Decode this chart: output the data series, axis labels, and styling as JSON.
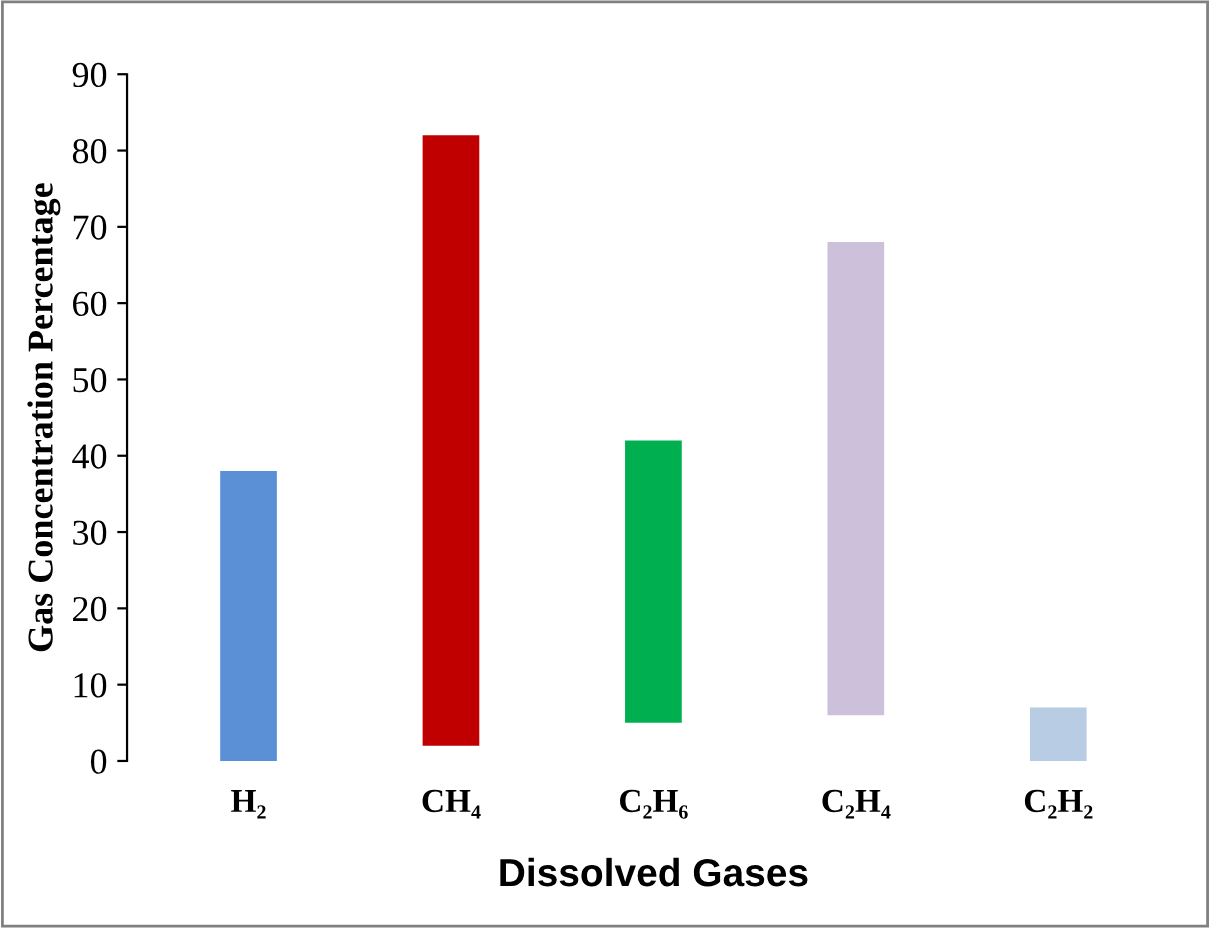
{
  "chart_data": {
    "type": "bar",
    "xlabel": "Dissolved Gases",
    "ylabel": "Gas Concentration Percentage",
    "categories": [
      "H₂",
      "CH₄",
      "C₂H₆",
      "C₂H₄",
      "C₂H₂"
    ],
    "base": [
      0,
      2,
      5,
      6,
      0
    ],
    "values": [
      38,
      80,
      37,
      62,
      7
    ],
    "colors": [
      "#5b8fd6",
      "#c00000",
      "#00b050",
      "#ccc0da",
      "#b8cce4"
    ],
    "ylim": [
      0,
      90
    ],
    "yticks": [
      0,
      10,
      20,
      30,
      40,
      50,
      60,
      70,
      80,
      90
    ],
    "grid": false,
    "legend": false
  }
}
